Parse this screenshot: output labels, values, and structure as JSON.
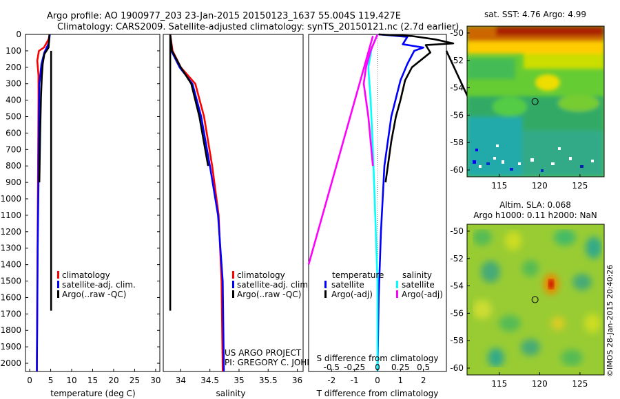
{
  "header": {
    "line1": "Argo profile: AO 1900977_203 23-Jan-2015 20150123_1637 55.004S 119.427E",
    "line2": "Climatology: CARS2009. Satellite-adjusted climatology: synTS_20150121.nc (2.7d earlier)"
  },
  "colors": {
    "climatology": "#ff0000",
    "satellite": "#0000ff",
    "argo": "#000000",
    "sal_satellite": "#00ffff",
    "sal_argo": "#ff00ff"
  },
  "chart_data": [
    {
      "type": "line",
      "id": "temperature",
      "xlabel": "temperature (deg C)",
      "ylabel": "",
      "xlim": [
        -1,
        31
      ],
      "ylim": [
        2050,
        0
      ],
      "xticks": [
        0,
        5,
        10,
        15,
        20,
        25,
        30
      ],
      "yticks": [
        0,
        100,
        200,
        300,
        400,
        500,
        600,
        700,
        800,
        900,
        1000,
        1100,
        1200,
        1300,
        1400,
        1500,
        1600,
        1700,
        1800,
        1900,
        2000
      ],
      "legend": [
        "climatology",
        "satellite-adj. clim.",
        "Argo(..raw -QC)"
      ],
      "series": [
        {
          "name": "climatology",
          "color": "#ff0000",
          "points": [
            [
              4.8,
              0
            ],
            [
              4.5,
              30
            ],
            [
              3.4,
              80
            ],
            [
              2.2,
              100
            ],
            [
              1.8,
              160
            ],
            [
              2.1,
              250
            ],
            [
              2.1,
              400
            ],
            [
              2.0,
              800
            ],
            [
              1.9,
              1200
            ],
            [
              1.8,
              1600
            ],
            [
              1.7,
              2000
            ],
            [
              1.7,
              2050
            ]
          ]
        },
        {
          "name": "satellite-adj. clim.",
          "color": "#0000ff",
          "points": [
            [
              4.8,
              0
            ],
            [
              4.6,
              50
            ],
            [
              3.5,
              110
            ],
            [
              2.8,
              180
            ],
            [
              2.3,
              300
            ],
            [
              2.2,
              500
            ],
            [
              2.1,
              900
            ],
            [
              1.9,
              1300
            ],
            [
              1.8,
              1700
            ],
            [
              1.7,
              2050
            ]
          ]
        },
        {
          "name": "Argo(..raw -QC)",
          "color": "#000000",
          "points": [
            [
              4.7,
              0
            ],
            [
              4.5,
              80
            ],
            [
              3.5,
              120
            ],
            [
              3.1,
              180
            ],
            [
              2.9,
              250
            ],
            [
              2.7,
              380
            ],
            [
              2.5,
              600
            ],
            [
              2.3,
              900
            ]
          ]
        },
        {
          "name": "Argo(..raw -QC)",
          "color": "#000000",
          "points": [
            [
              5.1,
              100
            ],
            [
              5.1,
              1680
            ]
          ]
        }
      ]
    },
    {
      "type": "line",
      "id": "salinity",
      "xlabel": "salinity",
      "ylabel": "",
      "xlim": [
        33.7,
        36.1
      ],
      "ylim": [
        2050,
        0
      ],
      "xticks": [
        34,
        34.5,
        35,
        35.5,
        36
      ],
      "yticks": [],
      "legend": [
        "climatology",
        "satellite-adj. clim.",
        "Argo(..raw -QC)"
      ],
      "series": [
        {
          "name": "climatology",
          "color": "#ff0000",
          "points": [
            [
              33.82,
              0
            ],
            [
              33.86,
              100
            ],
            [
              34.0,
              200
            ],
            [
              34.25,
              300
            ],
            [
              34.4,
              500
            ],
            [
              34.54,
              800
            ],
            [
              34.65,
              1100
            ],
            [
              34.7,
              1500
            ],
            [
              34.72,
              2050
            ]
          ]
        },
        {
          "name": "satellite-adj. clim.",
          "color": "#0000ff",
          "points": [
            [
              33.82,
              0
            ],
            [
              33.84,
              100
            ],
            [
              33.98,
              200
            ],
            [
              34.2,
              300
            ],
            [
              34.35,
              500
            ],
            [
              34.5,
              800
            ],
            [
              34.64,
              1100
            ],
            [
              34.72,
              1500
            ],
            [
              34.74,
              2050
            ]
          ]
        },
        {
          "name": "Argo(..raw -QC)",
          "color": "#000000",
          "points": [
            [
              33.82,
              0
            ],
            [
              33.85,
              100
            ],
            [
              34.0,
              200
            ],
            [
              34.18,
              300
            ],
            [
              34.32,
              500
            ],
            [
              34.47,
              800
            ]
          ]
        },
        {
          "name": "Argo(..raw -QC)",
          "color": "#000000",
          "points": [
            [
              33.82,
              0
            ],
            [
              33.82,
              1680
            ]
          ]
        }
      ]
    },
    {
      "type": "line",
      "id": "difference",
      "xlabel": "T difference from climatology",
      "x2label": "S difference from climatology",
      "xlim": [
        -3,
        3
      ],
      "ylim": [
        2050,
        0
      ],
      "xticks": [
        -2,
        -1,
        0,
        1,
        2
      ],
      "x2lim": [
        -0.75,
        0.75
      ],
      "x2ticks": [
        -0.5,
        -0.25,
        0,
        0.25,
        0.5
      ],
      "legend_temperature": "temperature",
      "legend_salinity": "salinity",
      "legend": [
        "satellite",
        "Argo(-adj)",
        "satellite",
        "Argo(-adj)"
      ],
      "series": [
        {
          "name": "satellite",
          "color": "#0000ff",
          "points": [
            [
              0.05,
              0
            ],
            [
              1.3,
              15
            ],
            [
              1.1,
              60
            ],
            [
              2.0,
              80
            ],
            [
              1.6,
              100
            ],
            [
              1.3,
              180
            ],
            [
              1.0,
              280
            ],
            [
              0.6,
              500
            ],
            [
              0.3,
              800
            ],
            [
              0.15,
              1200
            ],
            [
              0.05,
              1600
            ],
            [
              0.0,
              2050
            ]
          ]
        },
        {
          "name": "Argo(-adj)",
          "color": "#000000",
          "points": [
            [
              0.05,
              0
            ],
            [
              1.5,
              10
            ],
            [
              2.5,
              30
            ],
            [
              3.3,
              55
            ],
            [
              2.1,
              65
            ],
            [
              2.3,
              110
            ],
            [
              1.5,
              200
            ],
            [
              1.2,
              280
            ],
            [
              1.0,
              400
            ],
            [
              0.8,
              500
            ],
            [
              0.6,
              650
            ],
            [
              0.35,
              900
            ]
          ]
        },
        {
          "name": "Argo(-adj)",
          "color": "#000000",
          "points": [
            [
              3.0,
              100
            ],
            [
              4.0,
              400
            ]
          ]
        },
        {
          "name": "satellite",
          "color": "#00ffff",
          "points": [
            [
              0.0,
              0
            ],
            [
              -0.25,
              80
            ],
            [
              -0.4,
              200
            ],
            [
              -0.3,
              400
            ],
            [
              -0.2,
              700
            ],
            [
              -0.1,
              1100
            ],
            [
              0.0,
              1500
            ],
            [
              0.0,
              2050
            ]
          ]
        },
        {
          "name": "Argo(-adj)",
          "color": "#ff00ff",
          "points": [
            [
              0.0,
              0
            ],
            [
              -0.3,
              100
            ],
            [
              -0.5,
              200
            ],
            [
              -0.6,
              300
            ],
            [
              -0.4,
              500
            ],
            [
              -0.2,
              800
            ]
          ]
        },
        {
          "name": "Argo(-adj)",
          "color": "#ff00ff",
          "points": [
            [
              -0.2,
              10
            ],
            [
              -3.0,
              1400
            ]
          ]
        }
      ]
    },
    {
      "type": "heatmap",
      "id": "sst",
      "title": "sat. SST: 4.76 Argo: 4.99",
      "xlim": [
        111,
        128
      ],
      "ylim": [
        -60.5,
        -49.5
      ],
      "xticks": [
        115,
        120,
        125
      ],
      "yticks": [
        -50,
        -52,
        -54,
        -56,
        -58,
        -60
      ],
      "marker": {
        "lon": 119.427,
        "lat": -55.004
      }
    },
    {
      "type": "heatmap",
      "id": "sla",
      "title": "Altim. SLA: 0.068",
      "subtitle": "Argo h1000: 0.11 h2000: NaN",
      "xlim": [
        111,
        128
      ],
      "ylim": [
        -60.5,
        -49.5
      ],
      "xticks": [
        115,
        120,
        125
      ],
      "yticks": [
        -50,
        -52,
        -54,
        -56,
        -58,
        -60
      ],
      "marker": {
        "lon": 119.427,
        "lat": -55.004
      }
    }
  ],
  "annotations": {
    "project_line1": "US ARGO PROJECT",
    "project_line2": "PI: GREGORY C. JOHNSON",
    "imos_stamp": "©IMOS 28-Jan-2015 20:40:26"
  }
}
